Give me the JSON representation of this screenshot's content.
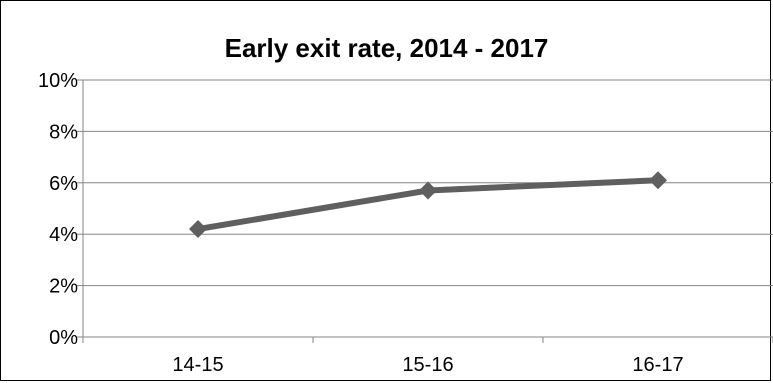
{
  "chart_data": {
    "type": "line",
    "title": "Early exit rate, 2014 - 2017",
    "xlabel": "",
    "ylabel": "",
    "categories": [
      "14-15",
      "15-16",
      "16-17"
    ],
    "series": [
      {
        "values": [
          4.2,
          5.7,
          6.1
        ],
        "color": "#5f5f5f",
        "marker": "diamond"
      }
    ],
    "ylim": [
      0,
      10
    ],
    "y_ticks": [
      0,
      2,
      4,
      6,
      8,
      10
    ],
    "y_tick_labels": [
      "0%",
      "2%",
      "4%",
      "6%",
      "8%",
      "10%"
    ],
    "grid": true,
    "legend": "none"
  }
}
